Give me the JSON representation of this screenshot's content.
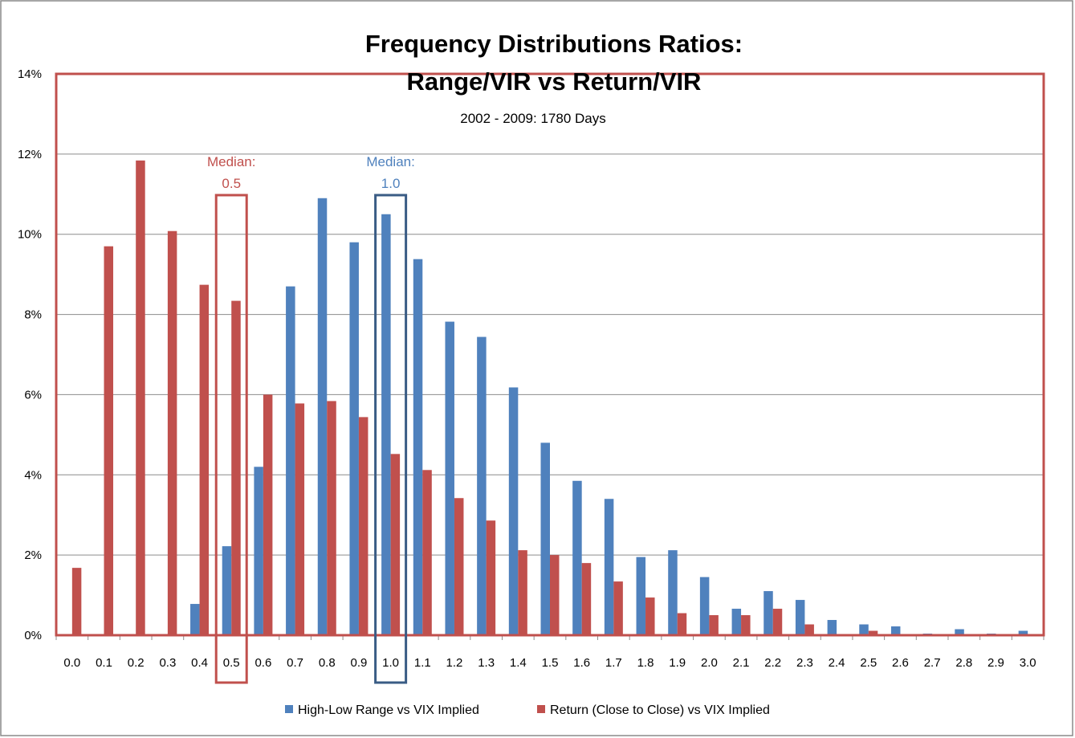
{
  "chart_data": {
    "type": "bar",
    "title_line1": "Frequency Distributions Ratios:",
    "title_line2": "Range/VIR  vs Return/VIR",
    "subtitle": "2002 - 2009:  1780 Days",
    "xlabel": "",
    "ylabel": "",
    "ylim": [
      0,
      14
    ],
    "yticks": [
      "0%",
      "2%",
      "4%",
      "6%",
      "8%",
      "10%",
      "12%",
      "14%"
    ],
    "grid": true,
    "legend_position": "bottom",
    "categories": [
      "0.0",
      "0.1",
      "0.2",
      "0.3",
      "0.4",
      "0.5",
      "0.6",
      "0.7",
      "0.8",
      "0.9",
      "1.0",
      "1.1",
      "1.2",
      "1.3",
      "1.4",
      "1.5",
      "1.6",
      "1.7",
      "1.8",
      "1.9",
      "2.0",
      "2.1",
      "2.2",
      "2.3",
      "2.4",
      "2.5",
      "2.6",
      "2.7",
      "2.8",
      "2.9",
      "3.0"
    ],
    "series": [
      {
        "name": "High-Low Range vs VIX Implied",
        "color": "#4F81BD",
        "values": [
          0,
          0,
          0,
          0,
          0.78,
          2.22,
          4.2,
          8.7,
          10.9,
          9.8,
          10.5,
          9.38,
          7.82,
          7.44,
          6.18,
          4.8,
          3.85,
          3.4,
          1.95,
          2.12,
          1.45,
          0.66,
          1.1,
          0.88,
          0.38,
          0.27,
          0.22,
          0.04,
          0.15,
          0.04,
          0.11
        ]
      },
      {
        "name": "Return (Close to Close) vs VIX Implied",
        "color": "#C0504D",
        "values": [
          1.68,
          9.7,
          11.84,
          10.08,
          8.74,
          8.34,
          6.0,
          5.78,
          5.84,
          5.44,
          4.52,
          4.12,
          3.42,
          2.86,
          2.12,
          2.0,
          1.8,
          1.34,
          0.94,
          0.55,
          0.5,
          0.5,
          0.66,
          0.27,
          0,
          0.11,
          0,
          0,
          0,
          0,
          0
        ]
      }
    ],
    "annotations": [
      {
        "text_line1": "Median:",
        "text_line2": "0.5",
        "category": "0.5",
        "color": "#C0504D"
      },
      {
        "text_line1": "Median:",
        "text_line2": "1.0",
        "category": "1.0",
        "color": "#4F81BD"
      }
    ]
  }
}
